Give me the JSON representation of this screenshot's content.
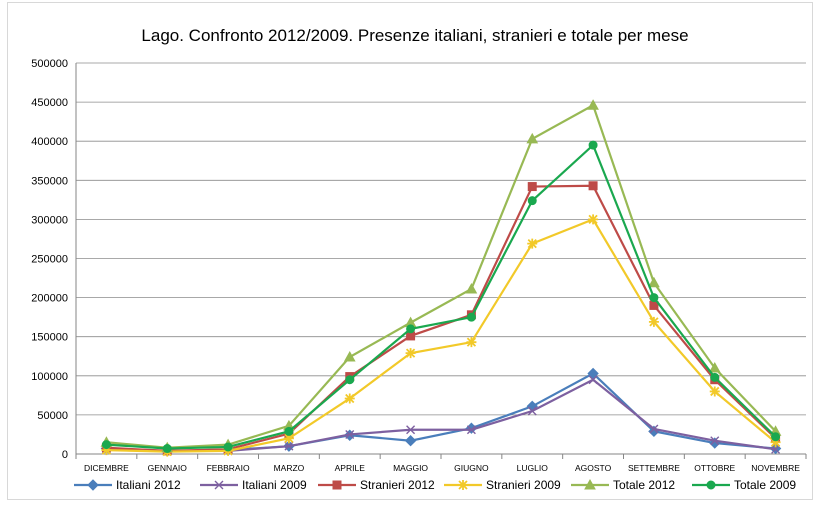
{
  "chart_data": {
    "type": "line",
    "title": "Lago. Confronto 2012/2009. Presenze italiani, stranieri e totale per mese",
    "xlabel": "",
    "ylabel": "",
    "ylim": [
      0,
      500000
    ],
    "yticks": [
      0,
      50000,
      100000,
      150000,
      200000,
      250000,
      300000,
      350000,
      400000,
      450000,
      500000
    ],
    "ytick_labels": [
      "0",
      "50000",
      "100000",
      "150000",
      "200000",
      "250000",
      "300000",
      "350000",
      "400000",
      "450000",
      "500000"
    ],
    "grid": true,
    "legend_position": "bottom",
    "categories": [
      "DICEMBRE",
      "GENNAIO",
      "FEBBRAIO",
      "MARZO",
      "APRILE",
      "MAGGIO",
      "GIUGNO",
      "LUGLIO",
      "AGOSTO",
      "SETTEMBRE",
      "OTTOBRE",
      "NOVEMBRE"
    ],
    "series": [
      {
        "name": "Italiani 2012",
        "color": "#4a7ebb",
        "marker": "diamond",
        "values": [
          7000,
          4000,
          5000,
          10000,
          24000,
          17000,
          33000,
          61000,
          103000,
          29000,
          14000,
          7000
        ]
      },
      {
        "name": "Italiani 2009",
        "color": "#7d60a0",
        "marker": "x",
        "values": [
          6000,
          4000,
          4000,
          10000,
          25000,
          31000,
          31000,
          55000,
          95000,
          32000,
          17000,
          6000
        ]
      },
      {
        "name": "Stranieri 2012",
        "color": "#be4b48",
        "marker": "square",
        "values": [
          8000,
          4000,
          6000,
          26000,
          99000,
          151000,
          178000,
          342000,
          343000,
          190000,
          95000,
          20000
        ]
      },
      {
        "name": "Stranieri 2009",
        "color": "#f2c929",
        "marker": "star",
        "values": [
          5000,
          3000,
          4000,
          20000,
          71000,
          129000,
          143000,
          269000,
          300000,
          169000,
          80000,
          15000
        ]
      },
      {
        "name": "Totale 2012",
        "color": "#98b954",
        "marker": "triangle",
        "values": [
          15000,
          8000,
          12000,
          36000,
          124000,
          168000,
          211000,
          403000,
          446000,
          219000,
          110000,
          29000
        ]
      },
      {
        "name": "Totale 2009",
        "color": "#1aa84f",
        "marker": "circle",
        "values": [
          12000,
          7000,
          9000,
          29000,
          95000,
          160000,
          175000,
          324000,
          395000,
          200000,
          98000,
          22000
        ]
      }
    ]
  }
}
